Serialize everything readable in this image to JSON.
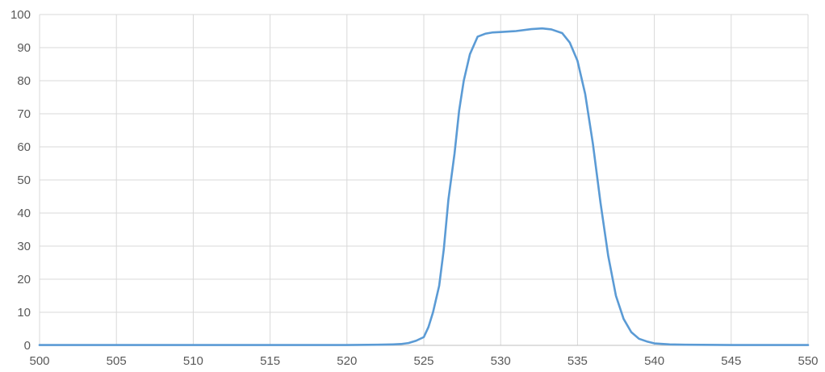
{
  "colors": {
    "line": "#5b9bd5",
    "grid": "#d9d9d9",
    "axis": "#bfbfbf",
    "text": "#595959",
    "background": "#ffffff"
  },
  "chart_data": {
    "type": "line",
    "title": "",
    "xlabel": "",
    "ylabel": "",
    "xlim": [
      500,
      550
    ],
    "ylim": [
      0,
      100
    ],
    "x_ticks": [
      "500",
      "505",
      "510",
      "515",
      "520",
      "525",
      "530",
      "535",
      "540",
      "545",
      "550"
    ],
    "y_ticks": [
      "0",
      "10",
      "20",
      "30",
      "40",
      "50",
      "60",
      "70",
      "80",
      "90",
      "100"
    ],
    "grid": "both",
    "legend": "none",
    "series": [
      {
        "x": [
          500,
          505,
          510,
          515,
          520,
          522,
          523,
          523.5,
          524,
          524.5,
          525,
          525.3,
          525.6,
          526,
          526.3,
          526.6,
          527,
          527.3,
          527.6,
          528,
          528.5,
          529,
          529.5,
          530,
          531,
          532,
          532.7,
          533.3,
          534,
          534.5,
          535,
          535.5,
          536,
          536.5,
          537,
          537.5,
          538,
          538.5,
          539,
          539.5,
          540,
          541,
          542,
          545,
          550
        ],
        "y": [
          0.1,
          0.1,
          0.1,
          0.1,
          0.1,
          0.2,
          0.3,
          0.4,
          0.7,
          1.4,
          2.5,
          5.5,
          10,
          18,
          29,
          44,
          58,
          71,
          80,
          88,
          93.3,
          94.2,
          94.6,
          94.7,
          95,
          95.6,
          95.8,
          95.5,
          94.4,
          91.5,
          86,
          76,
          61,
          43,
          27,
          15,
          8,
          4,
          2,
          1.2,
          0.6,
          0.3,
          0.2,
          0.1,
          0.1
        ]
      }
    ]
  }
}
